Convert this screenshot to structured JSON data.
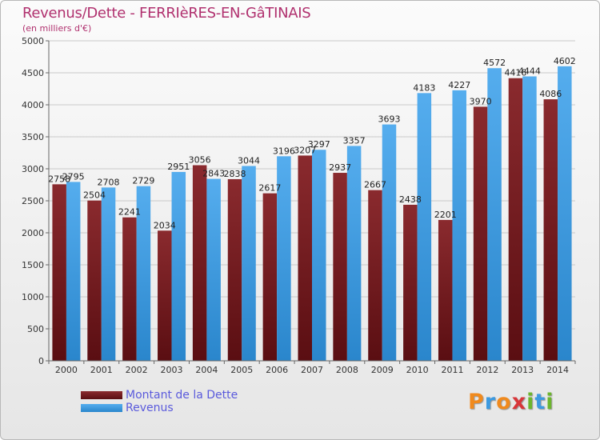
{
  "title": "Revenus/Dette - FERRIèRES-EN-GâTINAIS",
  "subtitle": "(en milliers d'€)",
  "logo_text": "Proxiti",
  "colors": {
    "dette": "#7b2226",
    "revenus": "#3d9ae0",
    "title": "#b0306e",
    "legend_text": "#5a5adc"
  },
  "chart_data": {
    "type": "bar",
    "title": "Revenus/Dette - FERRIèRES-EN-GâTINAIS",
    "subtitle": "(en milliers d'€)",
    "categories": [
      "2000",
      "2001",
      "2002",
      "2003",
      "2004",
      "2005",
      "2006",
      "2007",
      "2008",
      "2009",
      "2010",
      "2011",
      "2012",
      "2013",
      "2014"
    ],
    "series": [
      {
        "name": "Montant de la Dette",
        "values": [
          2758,
          2504,
          2241,
          2034,
          3056,
          2838,
          2617,
          3207,
          2937,
          2667,
          2438,
          2201,
          3970,
          4416,
          4086
        ],
        "labels": [
          "2758",
          "2504",
          "2241",
          "2034",
          "3056",
          "2838",
          "2617",
          "3207",
          "2937",
          "2667",
          "2438",
          "2201",
          "3970",
          "4416",
          "4086"
        ]
      },
      {
        "name": "Revenus",
        "values": [
          2795,
          2708,
          2729,
          2951,
          2843,
          3044,
          3196,
          3297,
          3357,
          3693,
          4183,
          4227,
          4572,
          4444,
          4602
        ],
        "labels": [
          "2795",
          "2708",
          "2729",
          "2951",
          "2843",
          "3044",
          "3196",
          "3297",
          "3357",
          "3693",
          "4183",
          "4227",
          "4572",
          "4444",
          "4602"
        ]
      }
    ],
    "ylim": [
      0,
      5000
    ],
    "yticks": [
      "0",
      "500",
      "1000",
      "1500",
      "2000",
      "2500",
      "3000",
      "3500",
      "4000",
      "4500",
      "5000"
    ],
    "grid": true,
    "legend": "bottom-left"
  }
}
